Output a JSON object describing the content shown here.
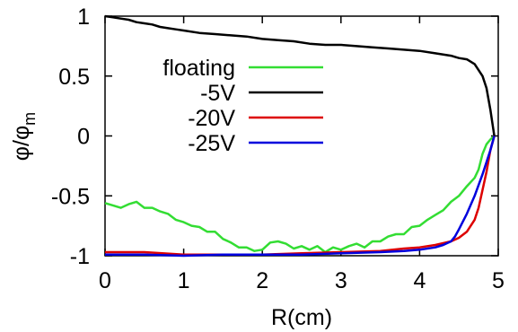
{
  "chart_data": {
    "type": "line",
    "title": "",
    "xlabel": "R(cm)",
    "ylabel": {
      "main": "φ/φ",
      "sub": "m"
    },
    "xlim": [
      0,
      5
    ],
    "ylim": [
      -1,
      1
    ],
    "xticks": [
      "0",
      "1",
      "2",
      "3",
      "4",
      "5"
    ],
    "yticks": [
      "-1",
      "-0.5",
      "0",
      "0.5",
      "1"
    ],
    "grid": false,
    "legend_position": "upper-left inside",
    "series": [
      {
        "name": "floating",
        "color": "#33dd33",
        "x": [
          0,
          0.1,
          0.2,
          0.3,
          0.4,
          0.5,
          0.6,
          0.7,
          0.8,
          0.9,
          1.0,
          1.1,
          1.2,
          1.3,
          1.4,
          1.5,
          1.6,
          1.7,
          1.8,
          1.9,
          2.0,
          2.1,
          2.2,
          2.3,
          2.4,
          2.5,
          2.6,
          2.7,
          2.8,
          2.9,
          3.0,
          3.1,
          3.2,
          3.3,
          3.4,
          3.5,
          3.6,
          3.7,
          3.8,
          3.9,
          4.0,
          4.1,
          4.2,
          4.3,
          4.4,
          4.5,
          4.6,
          4.7,
          4.75,
          4.8,
          4.85,
          4.9,
          4.95
        ],
        "y": [
          -0.56,
          -0.58,
          -0.6,
          -0.57,
          -0.55,
          -0.6,
          -0.6,
          -0.63,
          -0.65,
          -0.7,
          -0.72,
          -0.75,
          -0.76,
          -0.8,
          -0.8,
          -0.86,
          -0.89,
          -0.93,
          -0.93,
          -0.96,
          -0.95,
          -0.89,
          -0.88,
          -0.9,
          -0.94,
          -0.92,
          -0.95,
          -0.92,
          -0.97,
          -0.93,
          -0.95,
          -0.92,
          -0.9,
          -0.93,
          -0.88,
          -0.88,
          -0.84,
          -0.82,
          -0.82,
          -0.76,
          -0.75,
          -0.7,
          -0.66,
          -0.62,
          -0.55,
          -0.5,
          -0.42,
          -0.35,
          -0.28,
          -0.15,
          -0.07,
          -0.03,
          0
        ]
      },
      {
        "name": "-5V",
        "color": "#000000",
        "x": [
          0,
          0.1,
          0.2,
          0.3,
          0.4,
          0.5,
          0.6,
          0.7,
          0.8,
          0.9,
          1.0,
          1.2,
          1.4,
          1.6,
          1.8,
          2.0,
          2.2,
          2.4,
          2.6,
          2.8,
          3.0,
          3.2,
          3.4,
          3.6,
          3.8,
          4.0,
          4.2,
          4.4,
          4.5,
          4.6,
          4.7,
          4.8,
          4.85,
          4.9,
          4.95
        ],
        "y": [
          1.0,
          0.99,
          0.98,
          0.97,
          0.95,
          0.94,
          0.93,
          0.91,
          0.9,
          0.89,
          0.88,
          0.86,
          0.85,
          0.84,
          0.83,
          0.81,
          0.8,
          0.79,
          0.77,
          0.76,
          0.76,
          0.75,
          0.74,
          0.73,
          0.72,
          0.71,
          0.69,
          0.67,
          0.65,
          0.64,
          0.6,
          0.5,
          0.4,
          0.22,
          0
        ]
      },
      {
        "name": "-20V",
        "color": "#dd0000",
        "x": [
          0,
          0.5,
          1.0,
          1.5,
          2.0,
          2.5,
          3.0,
          3.5,
          3.8,
          4.0,
          4.2,
          4.4,
          4.5,
          4.6,
          4.7,
          4.75,
          4.8,
          4.85,
          4.9,
          4.95
        ],
        "y": [
          -0.97,
          -0.97,
          -0.99,
          -0.99,
          -0.99,
          -0.98,
          -0.97,
          -0.96,
          -0.94,
          -0.93,
          -0.91,
          -0.88,
          -0.85,
          -0.8,
          -0.7,
          -0.6,
          -0.45,
          -0.3,
          -0.12,
          0
        ]
      },
      {
        "name": "-25V",
        "color": "#0000dd",
        "x": [
          0,
          0.5,
          1.0,
          1.5,
          2.0,
          2.5,
          3.0,
          3.5,
          3.8,
          4.0,
          4.2,
          4.3,
          4.4,
          4.45,
          4.5,
          4.6,
          4.7,
          4.8,
          4.9,
          4.95
        ],
        "y": [
          -0.99,
          -0.99,
          -1.0,
          -0.99,
          -0.99,
          -0.99,
          -0.98,
          -0.97,
          -0.96,
          -0.95,
          -0.93,
          -0.91,
          -0.88,
          -0.84,
          -0.78,
          -0.65,
          -0.5,
          -0.32,
          -0.12,
          0
        ]
      }
    ]
  }
}
